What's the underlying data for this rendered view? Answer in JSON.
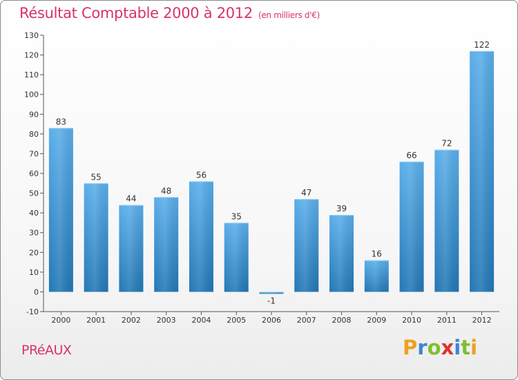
{
  "chart_data": {
    "type": "bar",
    "title": "Résultat Comptable 2000 à 2012",
    "subtitle": "(en milliers d'€)",
    "categories": [
      "2000",
      "2001",
      "2002",
      "2003",
      "2004",
      "2005",
      "2006",
      "2007",
      "2008",
      "2009",
      "2010",
      "2011",
      "2012"
    ],
    "values": [
      83,
      55,
      44,
      48,
      56,
      35,
      -1,
      47,
      39,
      16,
      66,
      72,
      122
    ],
    "ylim": [
      -10,
      130
    ],
    "yticks": [
      -10,
      0,
      10,
      20,
      30,
      40,
      50,
      60,
      70,
      80,
      90,
      100,
      110,
      120,
      130
    ],
    "grid": false,
    "xlabel": "",
    "ylabel": "",
    "bar_color_top": "#5aaeea",
    "bar_color_bottom": "#2277b5"
  },
  "footer": {
    "place": "PRéAUX",
    "brand_letters": [
      "P",
      "r",
      "o",
      "x",
      "i",
      "t",
      "i"
    ],
    "brand_colors": [
      "#f0a020",
      "#3a86d8",
      "#7fbf2e",
      "#e03232",
      "#3a86d8",
      "#7fbf2e",
      "#f0a020"
    ]
  },
  "colors": {
    "title": "#d7336a",
    "axis": "#555555"
  }
}
